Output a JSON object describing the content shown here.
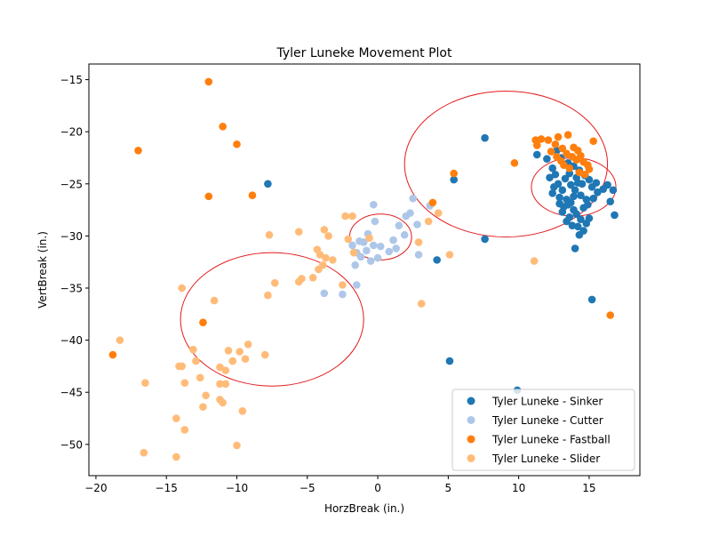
{
  "chart_data": {
    "type": "scatter",
    "title": "Tyler Luneke Movement Plot",
    "xlabel": "HorzBreak (in.)",
    "ylabel": "VertBreak (in.)",
    "xlim": [
      -20.5,
      18.6
    ],
    "ylim": [
      -53.0,
      -13.5
    ],
    "xticks": [
      -20,
      -15,
      -10,
      -5,
      0,
      5,
      10,
      15
    ],
    "yticks": [
      -15,
      -20,
      -25,
      -30,
      -35,
      -40,
      -45,
      -50
    ],
    "xtick_labels": [
      "−20",
      "−15",
      "−10",
      "−5",
      "0",
      "5",
      "10",
      "15"
    ],
    "ytick_labels": [
      "−15",
      "−20",
      "−25",
      "−30",
      "−35",
      "−40",
      "−45",
      "−50"
    ],
    "grid": false,
    "legend_position": "lower-right",
    "series": [
      {
        "name": "Tyler Luneke - Sinker",
        "color": "#1f77b4",
        "points": [
          [
            -7.8,
            -25.0
          ],
          [
            7.6,
            -20.6
          ],
          [
            5.4,
            -24.6
          ],
          [
            7.6,
            -30.3
          ],
          [
            4.2,
            -32.3
          ],
          [
            5.1,
            -42.0
          ],
          [
            9.9,
            -44.8
          ],
          [
            15.2,
            -36.1
          ],
          [
            14.0,
            -31.2
          ],
          [
            11.3,
            -22.2
          ],
          [
            12.0,
            -22.6
          ],
          [
            12.4,
            -23.5
          ],
          [
            12.6,
            -24.1
          ],
          [
            12.2,
            -24.4
          ],
          [
            12.8,
            -25.0
          ],
          [
            13.1,
            -25.6
          ],
          [
            12.4,
            -25.9
          ],
          [
            12.9,
            -26.3
          ],
          [
            13.4,
            -26.5
          ],
          [
            13.7,
            -26.8
          ],
          [
            13.2,
            -27.2
          ],
          [
            13.9,
            -27.5
          ],
          [
            14.1,
            -27.9
          ],
          [
            13.6,
            -28.2
          ],
          [
            14.4,
            -28.4
          ],
          [
            14.8,
            -28.8
          ],
          [
            14.2,
            -29.1
          ],
          [
            14.6,
            -29.5
          ],
          [
            14.3,
            -29.9
          ],
          [
            13.8,
            -29.0
          ],
          [
            13.4,
            -28.6
          ],
          [
            14.9,
            -27.0
          ],
          [
            15.3,
            -26.4
          ],
          [
            15.6,
            -25.8
          ],
          [
            16.0,
            -25.5
          ],
          [
            16.3,
            -25.1
          ],
          [
            16.7,
            -25.6
          ],
          [
            16.5,
            -26.7
          ],
          [
            16.8,
            -28.0
          ],
          [
            15.0,
            -24.6
          ],
          [
            14.7,
            -24.2
          ],
          [
            14.3,
            -23.7
          ],
          [
            13.9,
            -23.3
          ],
          [
            13.5,
            -23.0
          ],
          [
            13.0,
            -22.5
          ],
          [
            12.7,
            -21.8
          ],
          [
            13.3,
            -24.5
          ],
          [
            13.7,
            -25.1
          ],
          [
            14.0,
            -25.6
          ],
          [
            14.4,
            -26.1
          ],
          [
            14.8,
            -26.5
          ],
          [
            13.1,
            -27.7
          ],
          [
            12.9,
            -26.9
          ],
          [
            13.5,
            -27.0
          ],
          [
            14.5,
            -25.0
          ],
          [
            15.2,
            -25.3
          ],
          [
            15.5,
            -24.9
          ],
          [
            14.1,
            -24.4
          ],
          [
            13.6,
            -24.0
          ],
          [
            12.5,
            -25.3
          ],
          [
            14.6,
            -27.3
          ],
          [
            15.0,
            -28.3
          ],
          [
            13.9,
            -26.2
          ],
          [
            14.2,
            -24.9
          ]
        ]
      },
      {
        "name": "Tyler Luneke - Cutter",
        "color": "#aec7e8",
        "points": [
          [
            -0.3,
            -27.0
          ],
          [
            -0.2,
            -28.6
          ],
          [
            -0.7,
            -29.8
          ],
          [
            -1.3,
            -30.5
          ],
          [
            -1.8,
            -30.9
          ],
          [
            -1.5,
            -31.6
          ],
          [
            -1.2,
            -32.0
          ],
          [
            -1.6,
            -32.8
          ],
          [
            -0.8,
            -31.4
          ],
          [
            -0.3,
            -30.9
          ],
          [
            0.2,
            -31.0
          ],
          [
            0.0,
            -32.1
          ],
          [
            1.1,
            -30.4
          ],
          [
            1.3,
            -31.2
          ],
          [
            1.9,
            -29.9
          ],
          [
            2.3,
            -27.8
          ],
          [
            2.5,
            -26.4
          ],
          [
            2.8,
            -28.9
          ],
          [
            3.7,
            -27.1
          ],
          [
            2.0,
            -28.1
          ],
          [
            1.5,
            -29.0
          ],
          [
            2.9,
            -31.8
          ],
          [
            -0.5,
            -32.4
          ],
          [
            -1.5,
            -34.7
          ],
          [
            -2.5,
            -35.6
          ],
          [
            -3.8,
            -35.5
          ],
          [
            -1.0,
            -30.6
          ],
          [
            0.8,
            -31.5
          ]
        ]
      },
      {
        "name": "Tyler Luneke - Fastball",
        "color": "#ff7f0e",
        "points": [
          [
            -12.0,
            -15.2
          ],
          [
            -11.0,
            -19.5
          ],
          [
            -10.0,
            -21.2
          ],
          [
            -17.0,
            -21.8
          ],
          [
            -12.0,
            -26.2
          ],
          [
            -8.9,
            -26.1
          ],
          [
            -12.4,
            -38.3
          ],
          [
            -18.8,
            -41.4
          ],
          [
            3.9,
            -26.8
          ],
          [
            5.4,
            -24.0
          ],
          [
            9.7,
            -23.0
          ],
          [
            16.5,
            -37.6
          ],
          [
            11.2,
            -20.8
          ],
          [
            11.6,
            -20.7
          ],
          [
            12.1,
            -20.8
          ],
          [
            12.6,
            -21.2
          ],
          [
            11.3,
            -21.3
          ],
          [
            12.8,
            -20.5
          ],
          [
            13.5,
            -20.3
          ],
          [
            13.1,
            -21.6
          ],
          [
            13.4,
            -22.1
          ],
          [
            13.8,
            -22.4
          ],
          [
            14.1,
            -22.7
          ],
          [
            13.2,
            -23.2
          ],
          [
            14.3,
            -23.9
          ],
          [
            14.6,
            -22.9
          ],
          [
            14.9,
            -23.2
          ],
          [
            15.0,
            -23.6
          ],
          [
            15.3,
            -20.9
          ],
          [
            14.2,
            -21.8
          ],
          [
            13.9,
            -21.5
          ],
          [
            12.7,
            -22.4
          ],
          [
            12.3,
            -21.9
          ],
          [
            13.6,
            -23.5
          ],
          [
            14.7,
            -24.1
          ],
          [
            13.0,
            -22.8
          ],
          [
            14.4,
            -22.3
          ]
        ]
      },
      {
        "name": "Tyler Luneke - Slider",
        "color": "#ffbb78",
        "points": [
          [
            -7.7,
            -29.9
          ],
          [
            -7.8,
            -35.7
          ],
          [
            -7.3,
            -34.5
          ],
          [
            -5.6,
            -29.6
          ],
          [
            -5.4,
            -34.1
          ],
          [
            -5.6,
            -34.4
          ],
          [
            -4.3,
            -31.3
          ],
          [
            -4.1,
            -31.8
          ],
          [
            -3.7,
            -32.1
          ],
          [
            -3.8,
            -29.4
          ],
          [
            -3.5,
            -30.0
          ],
          [
            -3.2,
            -32.3
          ],
          [
            -4.6,
            -34.0
          ],
          [
            -4.2,
            -33.2
          ],
          [
            -3.9,
            -32.8
          ],
          [
            -2.3,
            -28.1
          ],
          [
            -1.8,
            -28.1
          ],
          [
            -2.1,
            -30.3
          ],
          [
            -1.7,
            -31.6
          ],
          [
            -2.5,
            -34.7
          ],
          [
            -0.6,
            -30.2
          ],
          [
            2.9,
            -30.6
          ],
          [
            3.6,
            -28.6
          ],
          [
            4.3,
            -27.8
          ],
          [
            5.1,
            -31.8
          ],
          [
            3.1,
            -36.5
          ],
          [
            11.1,
            -32.4
          ],
          [
            -13.9,
            -35.0
          ],
          [
            -11.6,
            -36.2
          ],
          [
            -18.3,
            -40.0
          ],
          [
            -13.1,
            -40.9
          ],
          [
            -12.9,
            -42.0
          ],
          [
            -13.9,
            -42.5
          ],
          [
            -14.1,
            -42.5
          ],
          [
            -11.2,
            -42.6
          ],
          [
            -10.6,
            -41.0
          ],
          [
            -10.3,
            -42.0
          ],
          [
            -10.8,
            -42.9
          ],
          [
            -9.8,
            -41.1
          ],
          [
            -9.2,
            -40.4
          ],
          [
            -9.4,
            -41.8
          ],
          [
            -8.0,
            -41.4
          ],
          [
            -12.6,
            -43.6
          ],
          [
            -13.7,
            -44.1
          ],
          [
            -11.2,
            -44.2
          ],
          [
            -10.8,
            -44.2
          ],
          [
            -16.5,
            -44.1
          ],
          [
            -12.2,
            -45.3
          ],
          [
            -11.2,
            -45.7
          ],
          [
            -11.0,
            -46.0
          ],
          [
            -12.4,
            -46.4
          ],
          [
            -9.6,
            -46.8
          ],
          [
            -14.3,
            -47.5
          ],
          [
            -13.7,
            -48.6
          ],
          [
            -10.0,
            -50.1
          ],
          [
            -16.6,
            -50.8
          ],
          [
            -14.3,
            -51.2
          ]
        ]
      }
    ],
    "annotations": [
      {
        "shape": "ellipse",
        "center": [
          -7.5,
          -38.0
        ],
        "rx": 6.5,
        "ry": 6.4,
        "color": "#e31a1c"
      },
      {
        "shape": "ellipse",
        "center": [
          0.2,
          -30.1
        ],
        "rx": 2.2,
        "ry": 2.2,
        "color": "#e31a1c"
      },
      {
        "shape": "ellipse",
        "center": [
          9.1,
          -23.1
        ],
        "rx": 7.2,
        "ry": 7.0,
        "color": "#e31a1c"
      },
      {
        "shape": "ellipse",
        "center": [
          13.9,
          -25.3
        ],
        "rx": 3.0,
        "ry": 2.8,
        "color": "#e31a1c"
      }
    ]
  }
}
